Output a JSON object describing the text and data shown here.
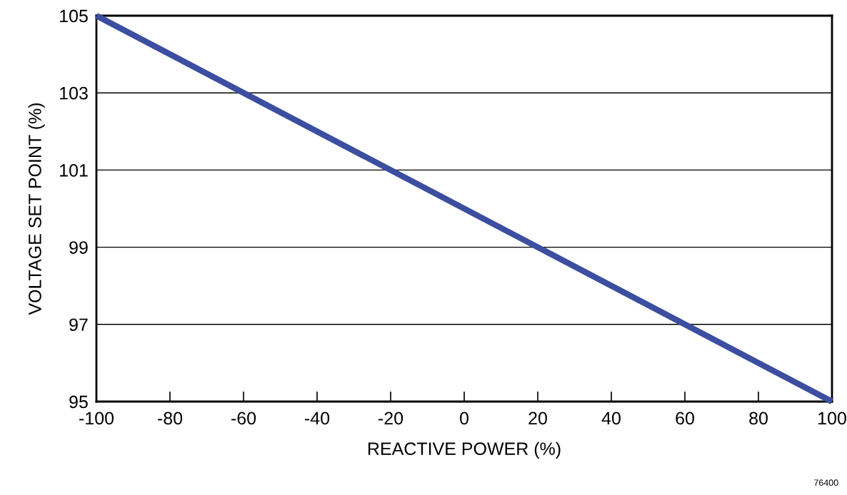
{
  "chart_data": {
    "type": "line",
    "xlabel": "REACTIVE POWER (%)",
    "ylabel": "VOLTAGE SET POINT (%)",
    "x": [
      -100,
      100
    ],
    "series": [
      {
        "color": "#3b4ea0",
        "values": [
          105,
          95
        ]
      }
    ],
    "xlim": [
      -100,
      100
    ],
    "xticks": [
      -100,
      -80,
      -60,
      -40,
      -20,
      0,
      20,
      40,
      60,
      80,
      100
    ],
    "ylim": [
      95,
      105
    ],
    "yticks": [
      95,
      97,
      99,
      101,
      103,
      105
    ],
    "grid": "y",
    "marker": "none",
    "line_style": "solid",
    "annotations": [
      "76400"
    ]
  }
}
